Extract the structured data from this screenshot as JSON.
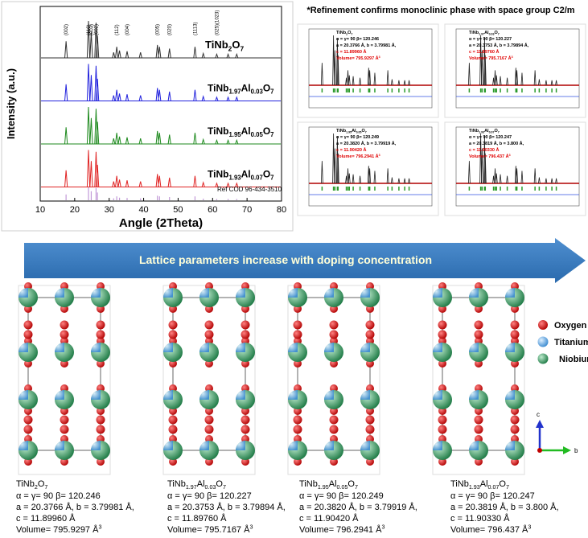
{
  "xrd": {
    "y_label": "Intensity (a.u.)",
    "x_label": "Angle (2Theta)",
    "xlim": [
      10,
      80
    ],
    "xticks": [
      10,
      20,
      30,
      40,
      50,
      60,
      70,
      80
    ],
    "patterns": [
      {
        "formula": [
          "TiNb",
          "2",
          "O",
          "7"
        ],
        "color": "#333333"
      },
      {
        "formula": [
          "TiNb",
          "1.97",
          "Al",
          "0.03",
          "O",
          "7"
        ],
        "color": "#2222dd"
      },
      {
        "formula": [
          "TiNb",
          "1.95",
          "Al",
          "0.05",
          "O",
          "7"
        ],
        "color": "#1e8a1e"
      },
      {
        "formula": [
          "TiNb",
          "1.93",
          "Al",
          "0.07",
          "O",
          "7"
        ],
        "color": "#e02424"
      }
    ],
    "reference": {
      "label": "Ref COD 96-434-3510",
      "color": "#c29ad8"
    },
    "peaks": {
      "positions": [
        17.5,
        24.0,
        24.8,
        26.2,
        26.6,
        31.3,
        32.2,
        33.0,
        35.2,
        39.1,
        44.0,
        44.6,
        47.5,
        54.9,
        57.3,
        61.2,
        64.5,
        67.0
      ],
      "intensities": [
        0.45,
        1.0,
        0.7,
        0.95,
        0.6,
        0.15,
        0.3,
        0.2,
        0.18,
        0.15,
        0.35,
        0.3,
        0.25,
        0.3,
        0.12,
        0.1,
        0.1,
        0.1
      ]
    },
    "peak_labels": [
      {
        "value": 17.5,
        "label": "(002)"
      },
      {
        "value": 24.0,
        "label": "(110)"
      },
      {
        "value": 24.8,
        "label": "(003)"
      },
      {
        "value": 26.2,
        "label": "(602)"
      },
      {
        "value": 32.2,
        "label": "(112)"
      },
      {
        "value": 35.2,
        "label": "(004)"
      },
      {
        "value": 44.0,
        "label": "(005)"
      },
      {
        "value": 47.5,
        "label": "(020)"
      },
      {
        "value": 54.9,
        "label": "(1113)"
      },
      {
        "value": 61.2,
        "label": "(025)(1023)"
      }
    ]
  },
  "refinement": {
    "title": "*Refinement confirms monoclinic phase with space group C2/m"
  },
  "arrow": {
    "label": "Lattice parameters increase with doping concentration"
  },
  "structures": [
    {
      "formula": [
        "TiNb",
        "2",
        "O",
        "7"
      ],
      "angles": "α = γ= 90 β= 120.246",
      "ab": "a = 20.3766 Å, b = 3.79981 Å,",
      "c": "c  = 11.89960 Å",
      "volume": [
        "Volume= 795.9297 Å",
        "3"
      ]
    },
    {
      "formula": [
        "TiNb",
        "1.97",
        "Al",
        "0.03",
        "O",
        "7"
      ],
      "angles": "α = γ= 90 β= 120.227",
      "ab": "a = 20.3753 Å, b = 3.79894 Å,",
      "c": "c  = 11.89760 Å",
      "volume": [
        "Volume= 795.7167 Å",
        "3"
      ]
    },
    {
      "formula": [
        "TiNb",
        "1.95",
        "Al",
        "0.05",
        "O",
        "7"
      ],
      "angles": "α = γ= 90 β= 120.249",
      "ab": "a = 20.3820 Å, b = 3.79919  Å,",
      "c": "c  = 11.90420 Å",
      "volume": [
        "Volume= 796.2941 Å",
        "3"
      ]
    },
    {
      "formula": [
        "TiNb",
        "1.93",
        "Al",
        "0.07",
        "O",
        "7"
      ],
      "angles": "α = γ= 90 β= 120.247",
      "ab": "a = 20.3819 Å, b = 3.800  Å,",
      "c": "c  = 11.90330 Å",
      "volume": [
        "Volume= 796.437 Å",
        "3"
      ]
    }
  ],
  "legend": [
    {
      "label": "Oxygen",
      "color": "#d00000"
    },
    {
      "label": "Titanium",
      "color": "#5aa7e0"
    },
    {
      "label": "Niobium",
      "color": "#2e9a5a"
    }
  ],
  "axes": {
    "c": "c",
    "b": "b"
  }
}
